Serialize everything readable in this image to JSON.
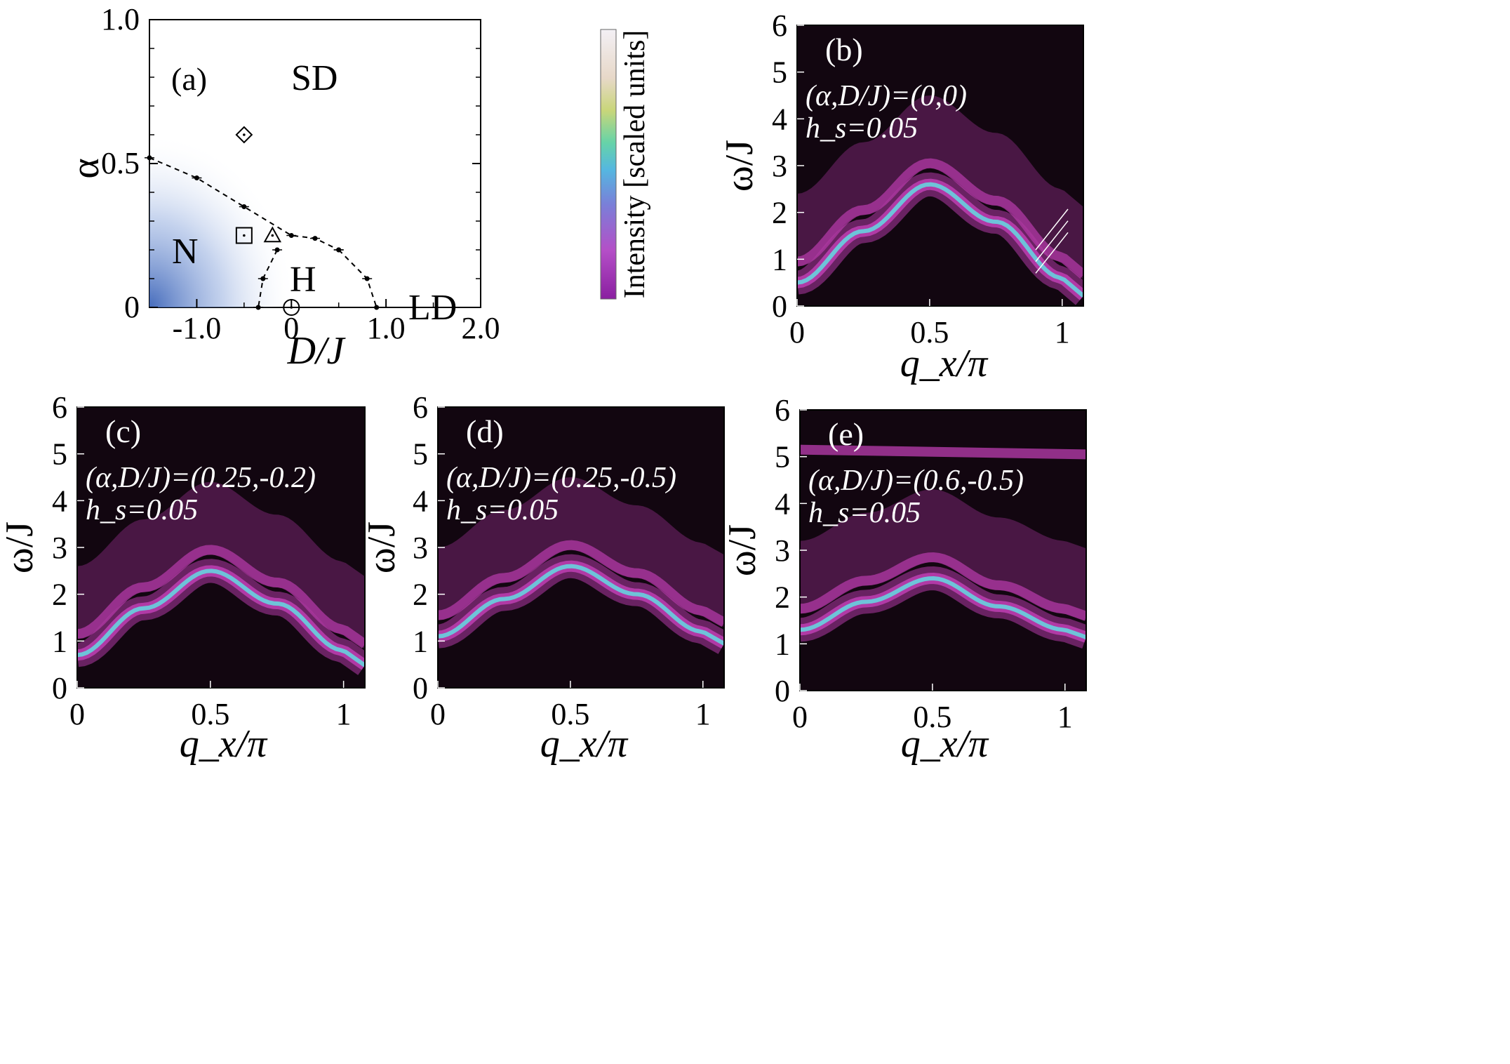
{
  "figure_colors": {
    "background": "#120610",
    "magenta": "#b13aa6",
    "cyan": "#5ee6e6",
    "region_n": "#3c64b8"
  },
  "colorbar": {
    "label": "Intensity [scaled units]"
  },
  "chart_data": [
    {
      "type": "scatter",
      "panel": "(a)",
      "xlabel": "D/J",
      "ylabel": "α",
      "xlim": [
        -1.5,
        2.0
      ],
      "ylim": [
        0,
        1.0
      ],
      "xticks": [
        "-1.0",
        "0",
        "1.0",
        "2.0"
      ],
      "yticks": [
        "0",
        "0.5",
        "1.0"
      ],
      "regions": [
        "SD",
        "N",
        "H",
        "LD"
      ],
      "boundary_upper": {
        "x": [
          -1.5,
          -1.0,
          -0.5,
          0.0,
          0.25,
          0.5
        ],
        "y": [
          0.52,
          0.45,
          0.35,
          0.25,
          0.24,
          0.2
        ]
      },
      "boundary_h_ld": {
        "x": [
          0.5,
          0.8,
          0.9
        ],
        "y": [
          0.2,
          0.1,
          0.0
        ]
      },
      "boundary_n_h": {
        "x": [
          -0.15,
          -0.3,
          -0.35
        ],
        "y": [
          0.2,
          0.1,
          0.0
        ]
      },
      "markers": [
        {
          "shape": "diamond",
          "x": -0.5,
          "y": 0.6
        },
        {
          "shape": "square",
          "x": -0.5,
          "y": 0.25
        },
        {
          "shape": "triangle",
          "x": -0.2,
          "y": 0.25
        },
        {
          "shape": "circle",
          "x": 0.0,
          "y": 0.0
        }
      ]
    },
    {
      "type": "heatmap",
      "panel": "(b)",
      "params": "(α,D/J)=(0,0)",
      "field": "h_s=0.05",
      "xlabel": "q_x/π",
      "ylabel": "ω/J",
      "xlim": [
        0,
        1.08
      ],
      "ylim": [
        0,
        6
      ],
      "xticks": [
        "0",
        "0.5",
        "1"
      ],
      "yticks": [
        "0",
        "1",
        "2",
        "3",
        "4",
        "5",
        "6"
      ],
      "dispersion": {
        "q": [
          0,
          0.25,
          0.5,
          0.75,
          1.0
        ],
        "omega": [
          0.5,
          1.6,
          2.6,
          1.8,
          0.6
        ]
      }
    },
    {
      "type": "heatmap",
      "panel": "(c)",
      "params": "(α,D/J)=(0.25,-0.2)",
      "field": "h_s=0.05",
      "xlabel": "q_x/π",
      "ylabel": "ω/J",
      "xlim": [
        0,
        1.08
      ],
      "ylim": [
        0,
        6
      ],
      "xticks": [
        "0",
        "0.5",
        "1"
      ],
      "yticks": [
        "0",
        "1",
        "2",
        "3",
        "4",
        "5",
        "6"
      ],
      "dispersion": {
        "q": [
          0,
          0.25,
          0.5,
          0.75,
          1.0
        ],
        "omega": [
          0.7,
          1.7,
          2.5,
          1.8,
          0.8
        ]
      }
    },
    {
      "type": "heatmap",
      "panel": "(d)",
      "params": "(α,D/J)=(0.25,-0.5)",
      "field": "h_s=0.05",
      "xlabel": "q_x/π",
      "ylabel": "ω/J",
      "xlim": [
        0,
        1.08
      ],
      "ylim": [
        0,
        6
      ],
      "xticks": [
        "0",
        "0.5",
        "1"
      ],
      "yticks": [
        "0",
        "1",
        "2",
        "3",
        "4",
        "5",
        "6"
      ],
      "dispersion": {
        "q": [
          0,
          0.25,
          0.5,
          0.75,
          1.0
        ],
        "omega": [
          1.1,
          1.9,
          2.6,
          2.0,
          1.2
        ]
      }
    },
    {
      "type": "heatmap",
      "panel": "(e)",
      "params": "(α,D/J)=(0.6,-0.5)",
      "field": "h_s=0.05",
      "xlabel": "q_x/π",
      "ylabel": "ω/J",
      "xlim": [
        0,
        1.08
      ],
      "ylim": [
        0,
        6
      ],
      "xticks": [
        "0",
        "0.5",
        "1"
      ],
      "yticks": [
        "0",
        "1",
        "2",
        "3",
        "4",
        "5",
        "6"
      ],
      "dispersion": {
        "q": [
          0,
          0.25,
          0.5,
          0.75,
          1.0
        ],
        "omega": [
          1.3,
          1.9,
          2.4,
          1.8,
          1.3
        ]
      }
    }
  ]
}
